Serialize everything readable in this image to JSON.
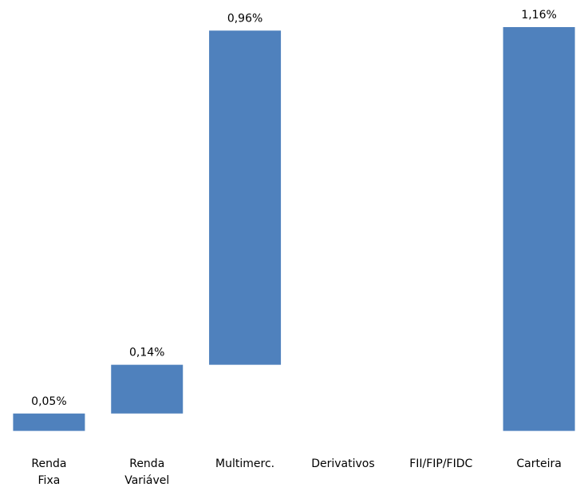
{
  "chart_data": {
    "type": "bar",
    "subtype": "waterfall",
    "categories": [
      "Renda\nFixa",
      "Renda\nVariável",
      "Multimerc.",
      "Derivativos",
      "FII/FIP/FIDC",
      "Carteira"
    ],
    "values": [
      0.05,
      0.14,
      0.96,
      0.0,
      0.0,
      1.16
    ],
    "data_labels": [
      "0,05%",
      "0,14%",
      "0,96%",
      "",
      "",
      "1,16%"
    ],
    "total_category_index": 5,
    "title": "",
    "xlabel": "",
    "ylabel": "",
    "ylim": [
      -0.01,
      1.16
    ],
    "grid": false,
    "legend": "none",
    "bar_color": "#4f81bd"
  }
}
